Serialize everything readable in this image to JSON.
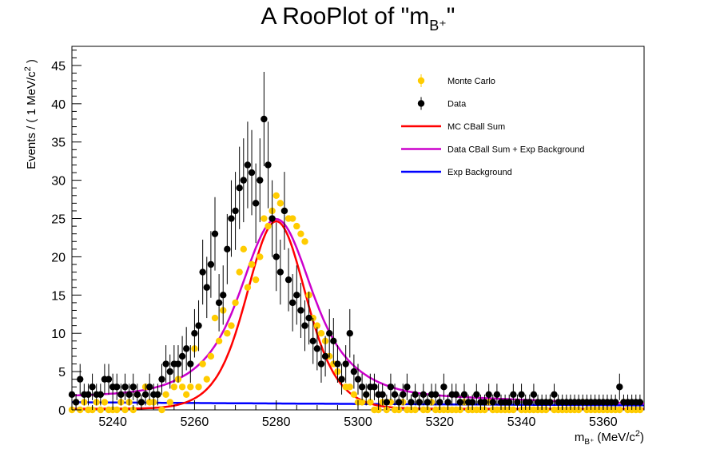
{
  "chart_data": {
    "type": "scatter",
    "title": "A RooPlot of \"m",
    "title_subscript": "B⁺",
    "title_suffix": "\"",
    "xlabel_main": "m",
    "xlabel_subscript": "B⁺",
    "xlabel_unit": "(MeV/c",
    "xlabel_sup": "2",
    "xlabel_close": ")",
    "ylabel_main": "Events / ( 1 MeV/c",
    "ylabel_sup": "2",
    "ylabel_close": " )",
    "xlim": [
      5230,
      5370
    ],
    "ylim": [
      0,
      47.5
    ],
    "x_ticks": [
      5240,
      5260,
      5280,
      5300,
      5320,
      5340,
      5360
    ],
    "y_ticks": [
      0,
      5,
      10,
      15,
      20,
      25,
      30,
      35,
      40,
      45
    ],
    "grid": false,
    "legend_position": "top-right",
    "series": [
      {
        "name": "Monte Carlo",
        "kind": "points",
        "color": "#ffcc00",
        "x": [
          5230,
          5231,
          5232,
          5233,
          5234,
          5235,
          5236,
          5237,
          5238,
          5239,
          5240,
          5241,
          5242,
          5243,
          5244,
          5245,
          5246,
          5247,
          5248,
          5249,
          5250,
          5251,
          5252,
          5253,
          5254,
          5255,
          5256,
          5257,
          5258,
          5259,
          5260,
          5261,
          5262,
          5263,
          5264,
          5265,
          5266,
          5267,
          5268,
          5269,
          5270,
          5271,
          5272,
          5273,
          5274,
          5275,
          5276,
          5277,
          5278,
          5279,
          5280,
          5281,
          5282,
          5283,
          5284,
          5285,
          5286,
          5287,
          5288,
          5289,
          5290,
          5291,
          5292,
          5293,
          5294,
          5295,
          5296,
          5297,
          5298,
          5299,
          5300,
          5301,
          5302,
          5303,
          5304,
          5305,
          5306,
          5307,
          5308,
          5309,
          5310,
          5311,
          5312,
          5313,
          5314,
          5315,
          5316,
          5317,
          5318,
          5319,
          5320,
          5321,
          5322,
          5323,
          5324,
          5325,
          5326,
          5327,
          5328,
          5329,
          5330,
          5331,
          5332,
          5333,
          5334,
          5335,
          5336,
          5337,
          5338,
          5339,
          5340,
          5341,
          5342,
          5343,
          5344,
          5345,
          5346,
          5347,
          5348,
          5349,
          5350,
          5351,
          5352,
          5353,
          5354,
          5355,
          5356,
          5357,
          5358,
          5359,
          5360,
          5361,
          5362,
          5363,
          5364,
          5365,
          5366,
          5367,
          5368,
          5369
        ],
        "y": [
          0,
          1,
          0,
          1,
          0,
          0,
          1,
          0,
          1,
          0,
          0,
          0,
          1,
          0,
          1,
          0,
          2,
          1,
          3,
          1,
          1,
          2,
          0,
          2,
          1,
          3,
          4,
          3,
          2,
          3,
          8,
          3,
          6,
          4,
          7,
          12,
          9,
          13,
          10,
          11,
          14,
          18,
          21,
          16,
          19,
          17,
          20,
          25,
          24,
          26,
          28,
          27,
          26,
          25,
          25,
          24,
          23,
          22,
          15,
          12,
          11,
          10,
          9,
          7,
          6,
          5,
          4,
          3,
          3,
          2,
          1,
          1,
          2,
          1,
          0,
          0,
          1,
          0,
          1,
          0,
          0,
          1,
          0,
          0,
          0,
          1,
          0,
          0,
          1,
          0,
          0,
          0,
          0,
          0,
          0,
          0,
          1,
          0,
          0,
          0,
          0,
          0,
          1,
          0,
          0,
          0,
          0,
          0,
          0,
          1,
          0,
          0,
          0,
          0,
          0,
          0,
          0,
          1,
          0,
          0,
          0,
          0,
          0,
          0,
          0,
          1,
          0,
          0,
          0,
          0,
          0,
          0,
          0,
          0,
          0,
          1,
          0,
          0,
          0,
          0
        ]
      },
      {
        "name": "Data",
        "kind": "points_with_errors",
        "color": "#000000",
        "x": [
          5230,
          5231,
          5232,
          5233,
          5234,
          5235,
          5236,
          5237,
          5238,
          5239,
          5240,
          5241,
          5242,
          5243,
          5244,
          5245,
          5246,
          5247,
          5248,
          5249,
          5250,
          5251,
          5252,
          5253,
          5254,
          5255,
          5256,
          5257,
          5258,
          5259,
          5260,
          5261,
          5262,
          5263,
          5264,
          5265,
          5266,
          5267,
          5268,
          5269,
          5270,
          5271,
          5272,
          5273,
          5274,
          5275,
          5276,
          5277,
          5278,
          5279,
          5280,
          5281,
          5282,
          5283,
          5284,
          5285,
          5286,
          5287,
          5288,
          5289,
          5290,
          5291,
          5292,
          5293,
          5294,
          5295,
          5296,
          5297,
          5298,
          5299,
          5300,
          5301,
          5302,
          5303,
          5304,
          5305,
          5306,
          5307,
          5308,
          5309,
          5310,
          5311,
          5312,
          5313,
          5314,
          5315,
          5316,
          5317,
          5318,
          5319,
          5320,
          5321,
          5322,
          5323,
          5324,
          5325,
          5326,
          5327,
          5328,
          5329,
          5330,
          5331,
          5332,
          5333,
          5334,
          5335,
          5336,
          5337,
          5338,
          5339,
          5340,
          5341,
          5342,
          5343,
          5344,
          5345,
          5346,
          5347,
          5348,
          5349,
          5350,
          5351,
          5352,
          5353,
          5354,
          5355,
          5356,
          5357,
          5358,
          5359,
          5360,
          5361,
          5362,
          5363,
          5364,
          5365,
          5366,
          5367,
          5368,
          5369
        ],
        "y": [
          2,
          1,
          4,
          2,
          2,
          3,
          2,
          2,
          4,
          4,
          3,
          3,
          2,
          3,
          2,
          3,
          2,
          1,
          2,
          3,
          2,
          2,
          4,
          6,
          5,
          6,
          6,
          7,
          8,
          6,
          10,
          11,
          18,
          16,
          19,
          23,
          14,
          15,
          21,
          25,
          26,
          29,
          30,
          32,
          31,
          27,
          30,
          38,
          32,
          25,
          20,
          18,
          26,
          17,
          14,
          15,
          13,
          11,
          12,
          9,
          8,
          6,
          7,
          10,
          9,
          6,
          4,
          6,
          10,
          5,
          4,
          3,
          2,
          3,
          3,
          2,
          2,
          1,
          3,
          2,
          1,
          2,
          3,
          1,
          2,
          1,
          2,
          1,
          2,
          2,
          1,
          3,
          1,
          2,
          2,
          1,
          2,
          1,
          1,
          2,
          1,
          1,
          2,
          1,
          2,
          1,
          1,
          1,
          2,
          1,
          2,
          1,
          1,
          2,
          1,
          1,
          1,
          1,
          2,
          1,
          1,
          1,
          1,
          1,
          1,
          1,
          1,
          1,
          1,
          1,
          1,
          1,
          1,
          1,
          3,
          1,
          1,
          1,
          1,
          1
        ]
      },
      {
        "name": "MC CBall Sum",
        "kind": "curve",
        "color": "#ff0000",
        "peak_x": 5280,
        "peak_y": 24.5
      },
      {
        "name": "Data CBall Sum + Exp Background",
        "kind": "curve",
        "color": "#cc00cc",
        "peak_x": 5280,
        "peak_y": 23.5
      },
      {
        "name": "Exp Background",
        "kind": "curve",
        "color": "#0000ff",
        "y_start": 1.0,
        "y_end": 0.6
      }
    ]
  }
}
